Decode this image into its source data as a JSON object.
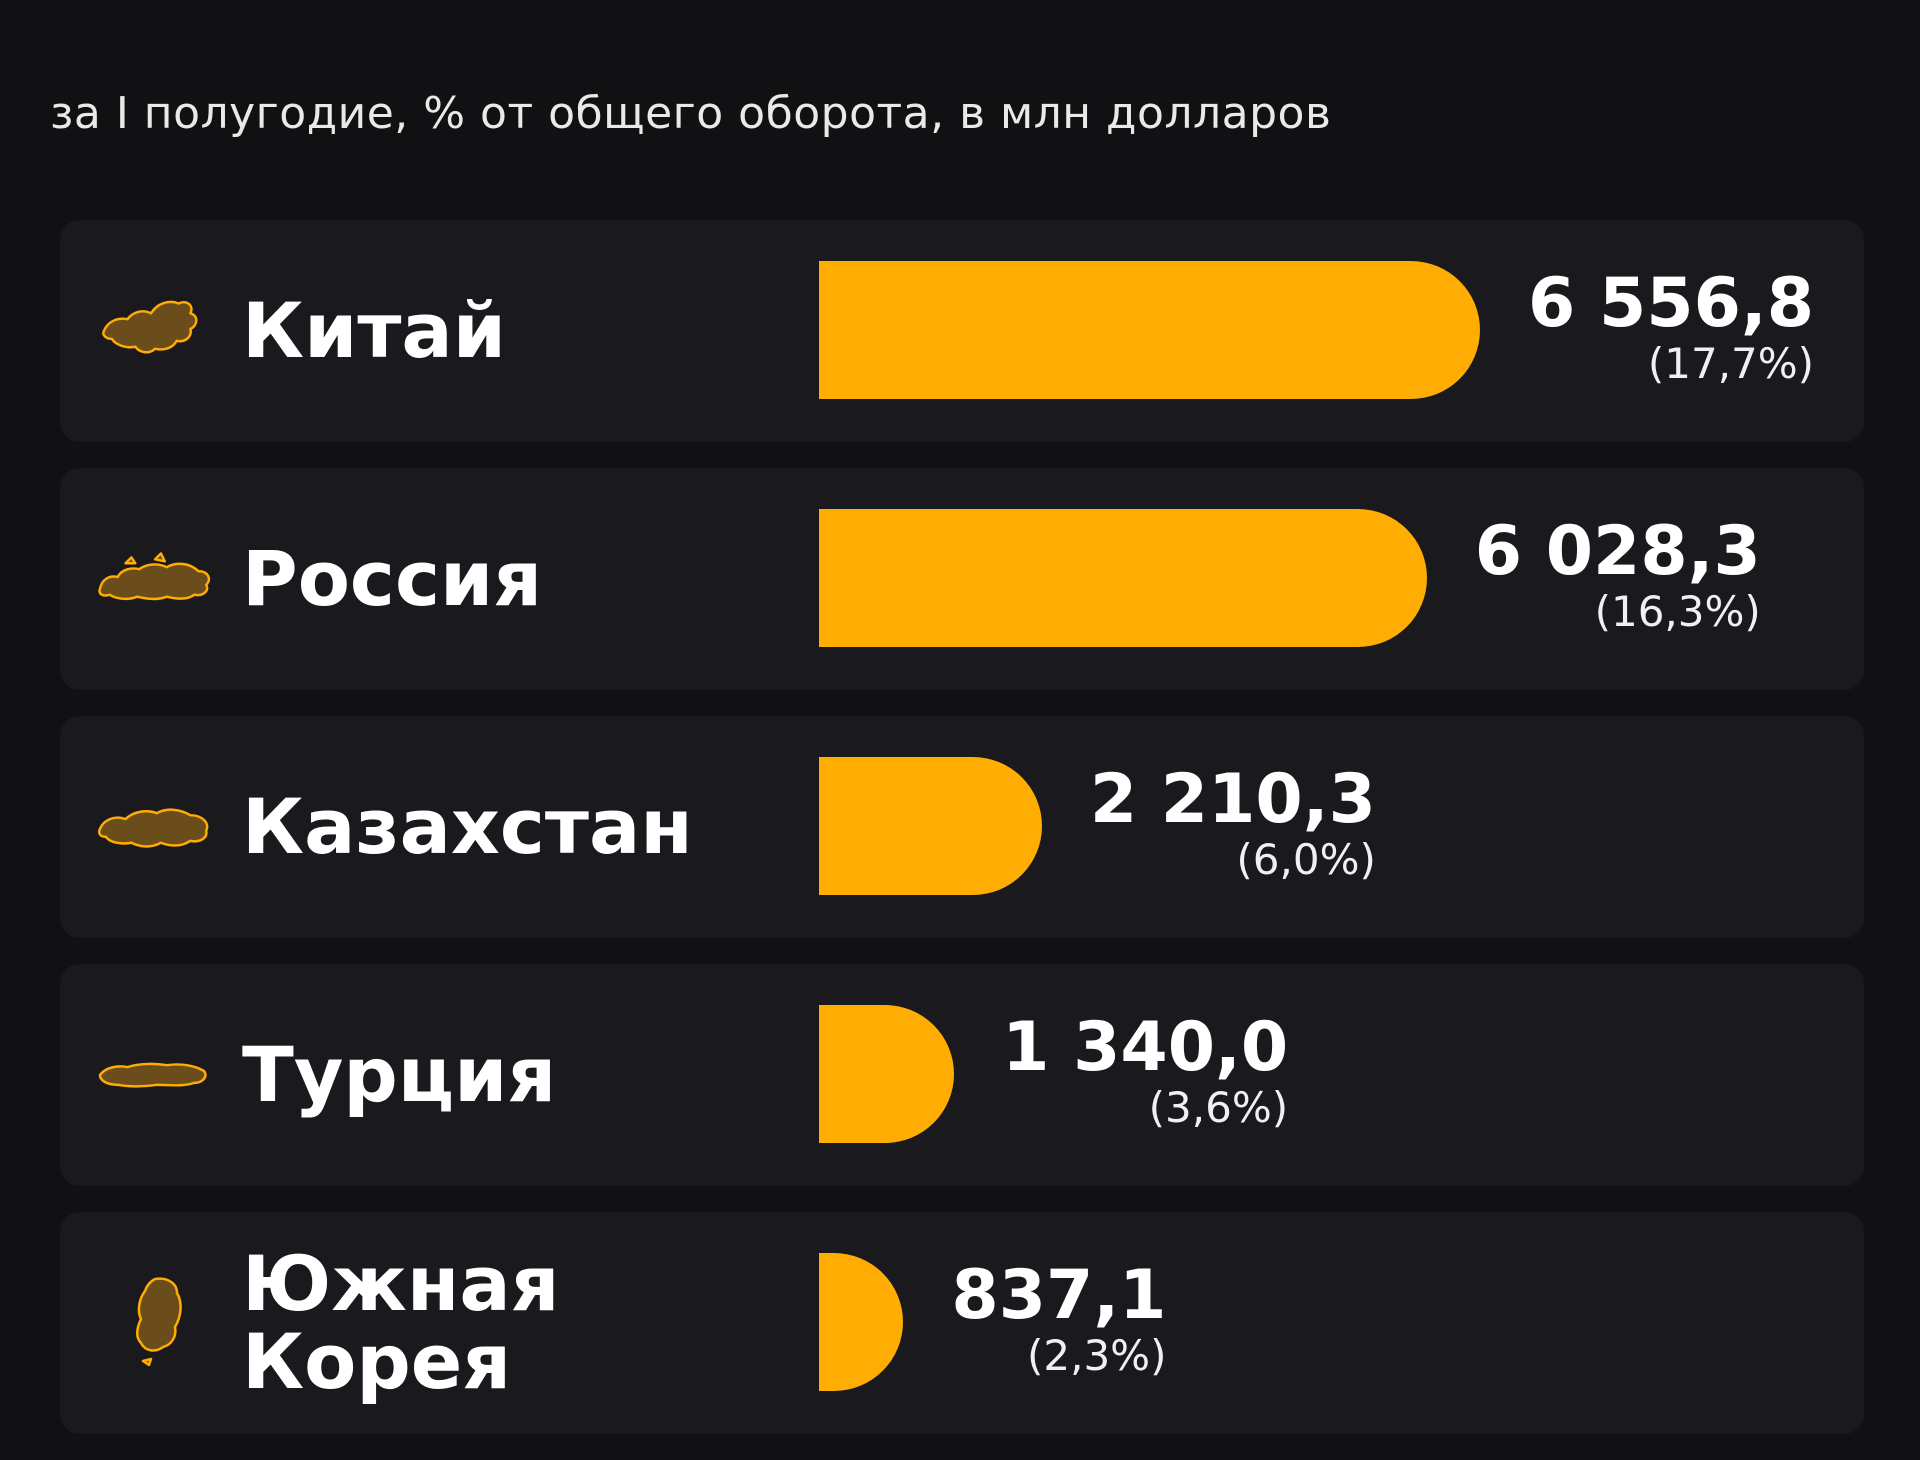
{
  "title_partial": "",
  "subtitle": "за I полугодие, % от общего оборота, в млн долларов",
  "colors": {
    "background": "#111114",
    "row_background": "#1a1a1e",
    "bar": "#ffad02",
    "icon_fill": "#6b4d1c",
    "icon_stroke": "#ffad02"
  },
  "chart_data": {
    "type": "bar",
    "orientation": "horizontal",
    "categories": [
      "Китай",
      "Россия",
      "Казахстан",
      "Турция",
      "Южная\nКорея"
    ],
    "values": [
      6556.8,
      6028.3,
      2210.3,
      1340.0,
      837.1
    ],
    "value_labels": [
      "6 556,8",
      "6 028,3",
      "2 210,3",
      "1 340,0",
      "837,1"
    ],
    "percent_labels": [
      "(17,7%)",
      "(16,3%)",
      "(6,0%)",
      "(3,6%)",
      "(2,3%)"
    ],
    "icons": [
      "china-map-icon",
      "russia-map-icon",
      "kazakhstan-map-icon",
      "turkey-map-icon",
      "south-korea-map-icon"
    ],
    "xlim": [
      0,
      6556.8
    ],
    "grid": false,
    "legend": "none"
  }
}
